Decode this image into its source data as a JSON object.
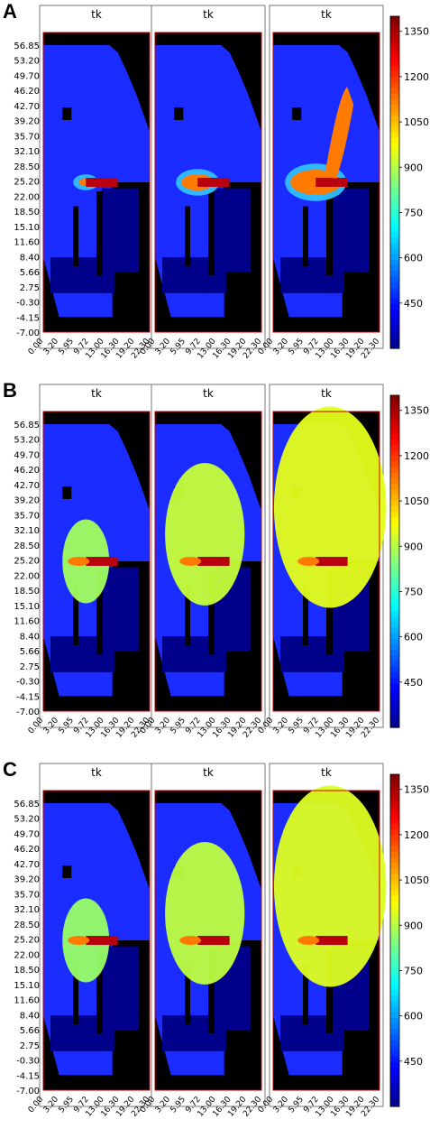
{
  "chart_data": [
    {
      "type": "heatmap",
      "panel": "A",
      "titles": [
        "tk",
        "tk",
        "tk"
      ],
      "yticks": [
        "56.85",
        "53.20",
        "49.70",
        "46.20",
        "42.70",
        "39.20",
        "35.70",
        "32.10",
        "28.50",
        "25.20",
        "22.00",
        "18.50",
        "15.10",
        "11.60",
        "8.40",
        "5.66",
        "2.75",
        "-0.30",
        "-4.15",
        "-7.00"
      ],
      "xticks": [
        "0.00",
        "3.20",
        "5.95",
        "9.72",
        "13.00",
        "16.30",
        "19.20",
        "22.30"
      ],
      "colorbar": {
        "ticks": [
          "1350",
          "1200",
          "1050",
          "900",
          "750",
          "600",
          "450"
        ],
        "range": [
          300,
          1400
        ]
      }
    },
    {
      "type": "heatmap",
      "panel": "B",
      "titles": [
        "tk",
        "tk",
        "tk"
      ],
      "yticks": [
        "56.85",
        "53.20",
        "49.70",
        "46.20",
        "42.70",
        "39.20",
        "35.70",
        "32.10",
        "28.50",
        "25.20",
        "22.00",
        "18.50",
        "15.10",
        "11.60",
        "8.40",
        "5.66",
        "2.75",
        "-0.30",
        "-4.15",
        "-7.00"
      ],
      "xticks": [
        "0.00",
        "3.20",
        "5.95",
        "9.72",
        "13.00",
        "16.30",
        "19.20",
        "22.30"
      ],
      "colorbar": {
        "ticks": [
          "1350",
          "1200",
          "1050",
          "900",
          "750",
          "600",
          "450"
        ],
        "range": [
          300,
          1400
        ]
      }
    },
    {
      "type": "heatmap",
      "panel": "C",
      "titles": [
        "tk",
        "tk",
        "tk"
      ],
      "yticks": [
        "56.85",
        "53.20",
        "49.70",
        "46.20",
        "42.70",
        "39.20",
        "35.70",
        "32.10",
        "28.50",
        "25.20",
        "22.00",
        "18.50",
        "15.10",
        "11.60",
        "8.40",
        "5.66",
        "2.75",
        "-0.30",
        "-4.15",
        "-7.00"
      ],
      "xticks": [
        "0.00",
        "3.20",
        "5.95",
        "9.72",
        "13.00",
        "16.30",
        "19.20",
        "22.30"
      ],
      "colorbar": {
        "ticks": [
          "1350",
          "1200",
          "1050",
          "900",
          "750",
          "600",
          "450"
        ],
        "range": [
          300,
          1400
        ]
      }
    }
  ],
  "panels": [
    {
      "letter": "A"
    },
    {
      "letter": "B"
    },
    {
      "letter": "C"
    }
  ],
  "colors": {
    "background_low": "#1a2cff",
    "domain_black": "#000000",
    "hot": "#b8000f",
    "warm": "#ff7a00",
    "mid": "#b8f060",
    "cool": "#33c8ff",
    "dark_blue": "#00008b",
    "border_red": "#cc0000"
  }
}
